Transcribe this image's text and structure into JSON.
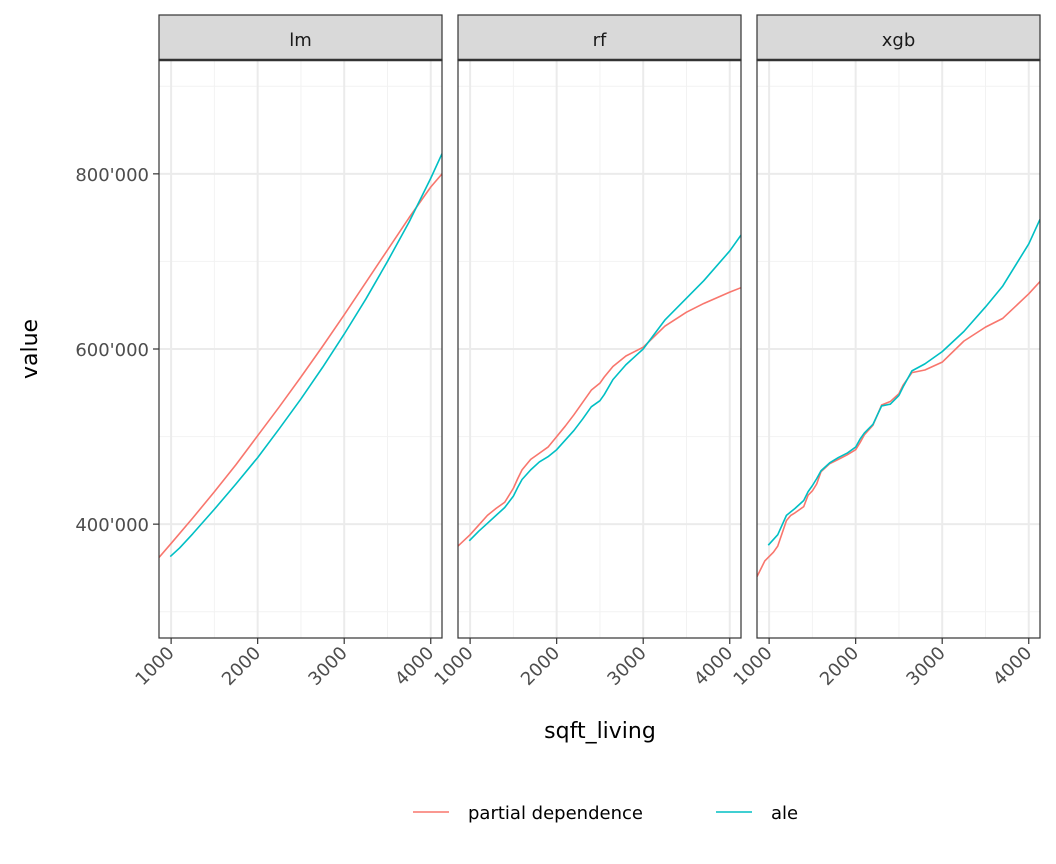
{
  "chart_data": {
    "type": "line",
    "xlabel": "sqft_living",
    "ylabel": "value",
    "xlim": [
      860,
      4130
    ],
    "ylim": [
      270000,
      930000
    ],
    "xticks": [
      1000,
      2000,
      3000,
      4000
    ],
    "yticks": [
      400000,
      600000,
      800000
    ],
    "ytick_labels": [
      "400'000",
      "600'000",
      "800'000"
    ],
    "grid": true,
    "legend": "bottom",
    "panels": [
      {
        "label": "lm",
        "series": [
          {
            "name": "partial dependence",
            "color": "#F8766D",
            "x": [
              860,
              1000,
              1250,
              1500,
              1750,
              2000,
              2250,
              2500,
              2750,
              3000,
              3250,
              3500,
              3750,
              4000,
              4130
            ],
            "y": [
              362000,
              378000,
              407000,
              437000,
              468000,
              501000,
              534000,
              568000,
              603000,
              639000,
              676000,
              713000,
              750000,
              785000,
              800000
            ]
          },
          {
            "name": "ale",
            "color": "#00BFC4",
            "x": [
              990,
              1100,
              1250,
              1500,
              1750,
              2000,
              2250,
              2500,
              2750,
              3000,
              3250,
              3500,
              3750,
              4000,
              4130
            ],
            "y": [
              363000,
              373000,
              389000,
              417000,
              446000,
              476000,
              509000,
              543000,
              579000,
              617000,
              657000,
              700000,
              745000,
              795000,
              823000
            ]
          }
        ]
      },
      {
        "label": "rf",
        "series": [
          {
            "name": "partial dependence",
            "color": "#F8766D",
            "x": [
              860,
              1000,
              1100,
              1200,
              1300,
              1400,
              1500,
              1550,
              1600,
              1700,
              1800,
              1900,
              2000,
              2100,
              2200,
              2300,
              2400,
              2500,
              2550,
              2650,
              2800,
              3000,
              3250,
              3500,
              3700,
              4000,
              4130
            ],
            "y": [
              375000,
              388000,
              399000,
              410000,
              418000,
              425000,
              441000,
              452000,
              462000,
              474000,
              481000,
              488000,
              500000,
              512000,
              525000,
              539000,
              553000,
              561000,
              568000,
              580000,
              592000,
              602000,
              626000,
              642000,
              652000,
              665000,
              670000
            ]
          },
          {
            "name": "ale",
            "color": "#00BFC4",
            "x": [
              990,
              1100,
              1200,
              1300,
              1400,
              1500,
              1550,
              1600,
              1700,
              1800,
              1900,
              2000,
              2100,
              2200,
              2300,
              2400,
              2500,
              2550,
              2650,
              2800,
              3000,
              3250,
              3500,
              3700,
              4000,
              4130
            ],
            "y": [
              381000,
              392000,
              401000,
              410000,
              419000,
              432000,
              442000,
              451000,
              462000,
              471000,
              477000,
              485000,
              496000,
              507000,
              520000,
              534000,
              541000,
              548000,
              565000,
              582000,
              600000,
              633000,
              658000,
              678000,
              712000,
              730000
            ]
          }
        ]
      },
      {
        "label": "xgb",
        "series": [
          {
            "name": "partial dependence",
            "color": "#F8766D",
            "x": [
              860,
              950,
              1050,
              1100,
              1200,
              1250,
              1300,
              1400,
              1450,
              1500,
              1550,
              1600,
              1700,
              1800,
              1900,
              2000,
              2050,
              2100,
              2200,
              2300,
              2400,
              2500,
              2550,
              2650,
              2800,
              3000,
              3250,
              3500,
              3700,
              4000,
              4130
            ],
            "y": [
              340000,
              358000,
              368000,
              375000,
              404000,
              410000,
              413000,
              420000,
              433000,
              438000,
              446000,
              460000,
              469000,
              474000,
              479000,
              485000,
              493000,
              502000,
              513000,
              536000,
              540000,
              549000,
              559000,
              573000,
              576000,
              585000,
              609000,
              625000,
              635000,
              663000,
              677000
            ]
          },
          {
            "name": "ale",
            "color": "#00BFC4",
            "x": [
              990,
              1100,
              1200,
              1300,
              1400,
              1450,
              1500,
              1550,
              1600,
              1700,
              1800,
              1900,
              2000,
              2050,
              2100,
              2200,
              2300,
              2400,
              2500,
              2550,
              2650,
              2800,
              3000,
              3250,
              3500,
              3700,
              4000,
              4130
            ],
            "y": [
              376000,
              388000,
              410000,
              418000,
              427000,
              437000,
              444000,
              452000,
              461000,
              470000,
              476000,
              481000,
              488000,
              497000,
              504000,
              514000,
              535000,
              537000,
              547000,
              557000,
              575000,
              583000,
              597000,
              620000,
              648000,
              672000,
              720000,
              748000
            ]
          }
        ]
      }
    ],
    "legend_entries": [
      {
        "label": "partial dependence",
        "color": "#F8766D"
      },
      {
        "label": "ale",
        "color": "#00BFC4"
      }
    ]
  }
}
